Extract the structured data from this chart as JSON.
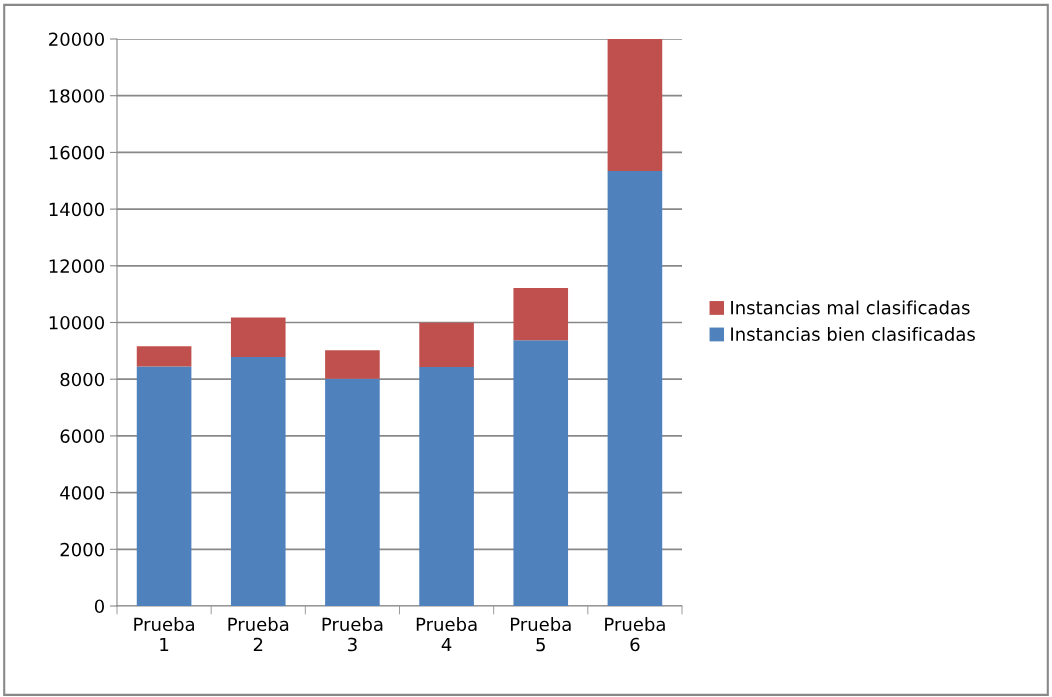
{
  "chart_data": {
    "type": "bar",
    "stacked": true,
    "categories": [
      "Prueba\n1",
      "Prueba\n2",
      "Prueba\n3",
      "Prueba\n4",
      "Prueba\n5",
      "Prueba\n6"
    ],
    "series": [
      {
        "name": "Instancias bien clasificadas",
        "color": "#4f81bd",
        "values": [
          8450,
          8780,
          8020,
          8430,
          9370,
          15340
        ]
      },
      {
        "name": "Instancias mal clasificadas",
        "color": "#c0504d",
        "values": [
          710,
          1400,
          1000,
          1560,
          1850,
          4660
        ]
      }
    ],
    "ylim": [
      0,
      20000
    ],
    "yticks": [
      0,
      2000,
      4000,
      6000,
      8000,
      10000,
      12000,
      14000,
      16000,
      18000,
      20000
    ],
    "grid": "y",
    "legend": "right"
  }
}
